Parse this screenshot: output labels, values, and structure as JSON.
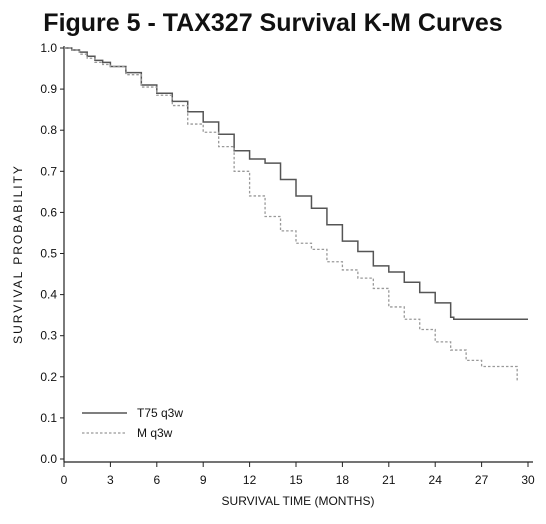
{
  "chart_data": {
    "type": "line",
    "title": "Figure 5 - TAX327 Survival K-M Curves",
    "xlabel": "SURVIVAL TIME (MONTHS)",
    "ylabel": "SURVIVAL PROBABILITY",
    "xlim": [
      0,
      30
    ],
    "ylim": [
      0,
      1.0
    ],
    "xticks": [
      "0",
      "3",
      "6",
      "9",
      "12",
      "15",
      "18",
      "21",
      "24",
      "27",
      "30"
    ],
    "yticks": [
      "0.0",
      "0.1",
      "0.2",
      "0.3",
      "0.4",
      "0.5",
      "0.6",
      "0.7",
      "0.8",
      "0.9",
      "1.0"
    ],
    "grid": false,
    "legend_position": "bottom-left",
    "series": [
      {
        "name": "T75 q3w",
        "style": "solid",
        "color": "#555555",
        "points": [
          [
            0,
            1.0
          ],
          [
            0.5,
            0.995
          ],
          [
            1,
            0.99
          ],
          [
            1.5,
            0.98
          ],
          [
            2,
            0.97
          ],
          [
            2.5,
            0.965
          ],
          [
            3,
            0.955
          ],
          [
            4,
            0.94
          ],
          [
            5,
            0.91
          ],
          [
            6,
            0.89
          ],
          [
            7,
            0.87
          ],
          [
            8,
            0.845
          ],
          [
            9,
            0.82
          ],
          [
            10,
            0.79
          ],
          [
            11,
            0.75
          ],
          [
            12,
            0.73
          ],
          [
            13,
            0.72
          ],
          [
            14,
            0.68
          ],
          [
            15,
            0.64
          ],
          [
            16,
            0.61
          ],
          [
            17,
            0.57
          ],
          [
            18,
            0.53
          ],
          [
            19,
            0.505
          ],
          [
            20,
            0.47
          ],
          [
            21,
            0.455
          ],
          [
            22,
            0.43
          ],
          [
            23,
            0.405
          ],
          [
            24,
            0.38
          ],
          [
            25,
            0.345
          ],
          [
            25.2,
            0.34
          ],
          [
            30,
            0.34
          ]
        ]
      },
      {
        "name": "M q3w",
        "style": "dashed",
        "color": "#999999",
        "points": [
          [
            0,
            1.0
          ],
          [
            0.5,
            0.995
          ],
          [
            1,
            0.985
          ],
          [
            1.5,
            0.975
          ],
          [
            2,
            0.965
          ],
          [
            2.5,
            0.96
          ],
          [
            3,
            0.955
          ],
          [
            4,
            0.935
          ],
          [
            5,
            0.905
          ],
          [
            6,
            0.885
          ],
          [
            7,
            0.86
          ],
          [
            8,
            0.815
          ],
          [
            9,
            0.795
          ],
          [
            10,
            0.76
          ],
          [
            11,
            0.7
          ],
          [
            12,
            0.64
          ],
          [
            13,
            0.59
          ],
          [
            14,
            0.555
          ],
          [
            15,
            0.525
          ],
          [
            16,
            0.51
          ],
          [
            17,
            0.48
          ],
          [
            18,
            0.46
          ],
          [
            19,
            0.44
          ],
          [
            20,
            0.415
          ],
          [
            21,
            0.37
          ],
          [
            22,
            0.34
          ],
          [
            23,
            0.315
          ],
          [
            24,
            0.285
          ],
          [
            25,
            0.265
          ],
          [
            26,
            0.24
          ],
          [
            27,
            0.225
          ],
          [
            29.3,
            0.225
          ],
          [
            29.3,
            0.19
          ]
        ]
      }
    ]
  }
}
